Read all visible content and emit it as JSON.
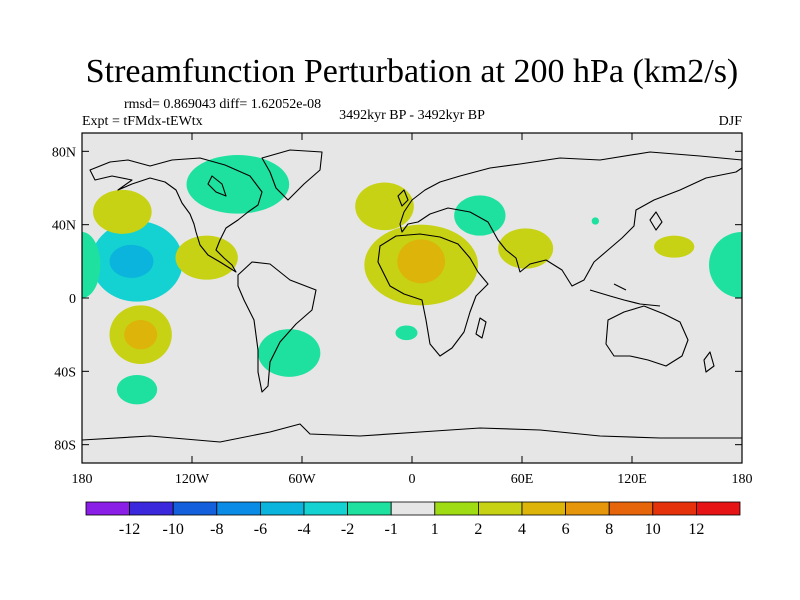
{
  "chart_data": {
    "type": "filled-contour-map",
    "title": "Streamfunction Perturbation at 200 hPa (km2/s)",
    "stats_line": "rmsd= 0.869043 diff= 1.62052e-08",
    "experiment_label": "Expt = tFMdx-tEWtx",
    "period_label": "3492kyr BP - 3492kyr BP",
    "season_label": "DJF",
    "xlim": [
      -180,
      180
    ],
    "ylim": [
      -90,
      90
    ],
    "x_ticks": [
      {
        "value": -180,
        "label": "180"
      },
      {
        "value": -120,
        "label": "120W"
      },
      {
        "value": -60,
        "label": "60W"
      },
      {
        "value": 0,
        "label": "0"
      },
      {
        "value": 60,
        "label": "60E"
      },
      {
        "value": 120,
        "label": "120E"
      },
      {
        "value": 180,
        "label": "180"
      }
    ],
    "y_ticks": [
      {
        "value": 80,
        "label": "80N"
      },
      {
        "value": 40,
        "label": "40N"
      },
      {
        "value": 0,
        "label": "0"
      },
      {
        "value": -40,
        "label": "40S"
      },
      {
        "value": -80,
        "label": "80S"
      }
    ],
    "colorbar": {
      "colors": [
        "#8a1ee6",
        "#3c28dc",
        "#1460dc",
        "#0a8ce6",
        "#0ab4dc",
        "#14d2d2",
        "#1ee1a0",
        "#e6e6e6",
        "#a0dc14",
        "#c8d214",
        "#dcb40a",
        "#e6960a",
        "#e6640a",
        "#e6320a",
        "#e61414"
      ],
      "labels": [
        "-12",
        "-10",
        "-8",
        "-6",
        "-4",
        "-2",
        "-1",
        "1",
        "2",
        "4",
        "6",
        "8",
        "10",
        "12"
      ]
    },
    "anomalies": [
      {
        "lon": -150,
        "lat": 20,
        "rlon": 25,
        "rlat": 22,
        "level": -2,
        "core_lon": -153,
        "core_lat": 20,
        "core_rlon": 12,
        "core_rlat": 9,
        "core_level": -4
      },
      {
        "lon": -95,
        "lat": 62,
        "rlon": 28,
        "rlat": 16,
        "level": -1
      },
      {
        "lon": -158,
        "lat": 47,
        "rlon": 16,
        "rlat": 12,
        "level": 2
      },
      {
        "lon": -112,
        "lat": 22,
        "rlon": 17,
        "rlat": 12,
        "level": 2
      },
      {
        "lon": -148,
        "lat": -20,
        "rlon": 17,
        "rlat": 16,
        "level": 2,
        "core_lon": -148,
        "core_lat": -20,
        "core_rlon": 9,
        "core_rlat": 8,
        "core_level": 4
      },
      {
        "lon": -150,
        "lat": -50,
        "rlon": 11,
        "rlat": 8,
        "level": -1
      },
      {
        "lon": -67,
        "lat": -30,
        "rlon": 17,
        "rlat": 13,
        "level": -1
      },
      {
        "lon": -15,
        "lat": 50,
        "rlon": 16,
        "rlat": 13,
        "level": 2
      },
      {
        "lon": 5,
        "lat": 18,
        "rlon": 31,
        "rlat": 22,
        "level": 2,
        "core_lon": 5,
        "core_lat": 20,
        "core_rlon": 13,
        "core_rlat": 12,
        "core_level": 4
      },
      {
        "lon": 37,
        "lat": 45,
        "rlon": 14,
        "rlat": 11,
        "level": -1
      },
      {
        "lon": 62,
        "lat": 27,
        "rlon": 15,
        "rlat": 11,
        "level": 2
      },
      {
        "lon": -3,
        "lat": -19,
        "rlon": 6,
        "rlat": 4,
        "level": -1
      },
      {
        "lon": 100,
        "lat": 42,
        "rlon": 2,
        "rlat": 2,
        "level": -1
      },
      {
        "lon": 143,
        "lat": 28,
        "rlon": 11,
        "rlat": 6,
        "level": 2
      },
      {
        "lon": 180,
        "lat": 18,
        "rlon": 18,
        "rlat": 18,
        "level": -1
      },
      {
        "lon": -180,
        "lat": 18,
        "rlon": 10,
        "rlat": 18,
        "level": -1
      }
    ]
  }
}
